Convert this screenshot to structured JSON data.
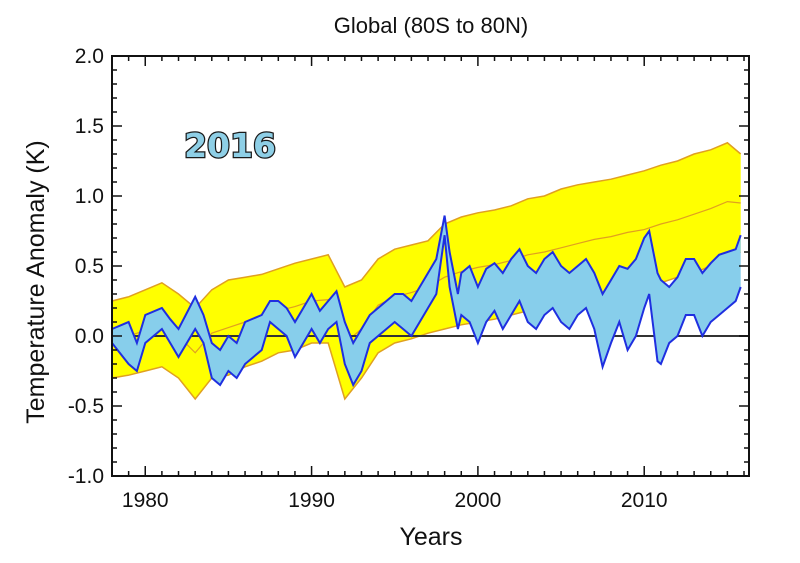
{
  "chart_data": {
    "type": "area",
    "title": "Global (80S to 80N)",
    "xlabel": "Years",
    "ylabel": "Temperature Anomaly (K)",
    "stamp": "2016",
    "xlim": [
      1978,
      2016.3
    ],
    "ylim": [
      -1.0,
      2.0
    ],
    "x_ticks": [
      1980,
      1990,
      2000,
      2010
    ],
    "x_tick_labels": [
      "1980",
      "1990",
      "2000",
      "2010"
    ],
    "y_ticks": [
      -1.0,
      -0.5,
      0.0,
      0.5,
      1.0,
      1.5,
      2.0
    ],
    "y_tick_labels": [
      "-1.0",
      "-0.5",
      "0.0",
      "0.5",
      "1.0",
      "1.5",
      "2.0"
    ],
    "zero_line": 0.0,
    "colors": {
      "model_range_fill": "#ffff00",
      "model_range_edge": "#e0a020",
      "model_mean": "#e0a020",
      "obs_fill": "#87ceeb",
      "obs_line": "#1f2fe0",
      "stamp_fill": "#8ecfe6",
      "stamp_stroke": "#1a1a1a"
    },
    "series": [
      {
        "kind": "model-range-upper",
        "x": [
          1978.0,
          1979.0,
          1980.0,
          1981.0,
          1982.0,
          1983.0,
          1984.0,
          1985.0,
          1986.0,
          1987.0,
          1988.0,
          1989.0,
          1990.0,
          1991.0,
          1992.0,
          1993.0,
          1994.0,
          1995.0,
          1996.0,
          1997.0,
          1998.0,
          1999.0,
          2000.0,
          2001.0,
          2002.0,
          2003.0,
          2004.0,
          2005.0,
          2006.0,
          2007.0,
          2008.0,
          2009.0,
          2010.0,
          2011.0,
          2012.0,
          2013.0,
          2014.0,
          2015.0,
          2015.8
        ],
        "values": [
          0.25,
          0.28,
          0.33,
          0.38,
          0.3,
          0.2,
          0.33,
          0.4,
          0.42,
          0.44,
          0.48,
          0.52,
          0.55,
          0.58,
          0.35,
          0.4,
          0.55,
          0.62,
          0.65,
          0.68,
          0.8,
          0.85,
          0.88,
          0.9,
          0.93,
          0.98,
          1.0,
          1.05,
          1.08,
          1.1,
          1.12,
          1.15,
          1.18,
          1.22,
          1.25,
          1.3,
          1.33,
          1.38,
          1.3
        ]
      },
      {
        "kind": "model-range-lower",
        "x": [
          1978.0,
          1979.0,
          1980.0,
          1981.0,
          1982.0,
          1983.0,
          1984.0,
          1985.0,
          1986.0,
          1987.0,
          1988.0,
          1989.0,
          1990.0,
          1991.0,
          1992.0,
          1993.0,
          1994.0,
          1995.0,
          1996.0,
          1997.0,
          1998.0,
          1999.0,
          2000.0,
          2001.0,
          2002.0,
          2003.0,
          2004.0,
          2005.0,
          2006.0,
          2007.0,
          2008.0,
          2009.0,
          2010.0,
          2011.0,
          2012.0,
          2013.0,
          2014.0,
          2015.0,
          2015.8
        ],
        "values": [
          -0.3,
          -0.28,
          -0.25,
          -0.22,
          -0.3,
          -0.45,
          -0.3,
          -0.28,
          -0.22,
          -0.18,
          -0.12,
          -0.1,
          -0.05,
          -0.05,
          -0.45,
          -0.3,
          -0.12,
          -0.05,
          -0.02,
          0.02,
          0.05,
          0.08,
          0.1,
          0.12,
          0.15,
          0.18,
          0.2,
          0.22,
          0.25,
          0.28,
          0.3,
          0.33,
          0.35,
          0.38,
          0.42,
          0.45,
          0.5,
          0.55,
          0.6
        ]
      },
      {
        "kind": "model-mean",
        "x": [
          1978.0,
          1979.0,
          1980.0,
          1981.0,
          1982.0,
          1983.0,
          1984.0,
          1985.0,
          1986.0,
          1987.0,
          1988.0,
          1989.0,
          1990.0,
          1991.0,
          1992.0,
          1993.0,
          1994.0,
          1995.0,
          1996.0,
          1997.0,
          1998.0,
          1999.0,
          2000.0,
          2001.0,
          2002.0,
          2003.0,
          2004.0,
          2005.0,
          2006.0,
          2007.0,
          2008.0,
          2009.0,
          2010.0,
          2011.0,
          2012.0,
          2013.0,
          2014.0,
          2015.0,
          2015.8
        ],
        "values": [
          -0.02,
          0.0,
          0.04,
          0.08,
          0.0,
          -0.12,
          0.02,
          0.06,
          0.1,
          0.13,
          0.18,
          0.21,
          0.25,
          0.26,
          -0.05,
          0.05,
          0.22,
          0.28,
          0.31,
          0.35,
          0.42,
          0.46,
          0.49,
          0.51,
          0.54,
          0.58,
          0.6,
          0.63,
          0.66,
          0.69,
          0.71,
          0.74,
          0.76,
          0.8,
          0.83,
          0.87,
          0.91,
          0.96,
          0.95
        ]
      },
      {
        "kind": "observations-upper",
        "x": [
          1978.0,
          1979.0,
          1979.5,
          1980.0,
          1981.0,
          1981.5,
          1982.0,
          1983.0,
          1983.5,
          1984.0,
          1984.5,
          1985.0,
          1985.5,
          1986.0,
          1987.0,
          1987.5,
          1988.0,
          1988.5,
          1989.0,
          1989.5,
          1990.0,
          1990.5,
          1991.0,
          1991.5,
          1992.0,
          1992.5,
          1993.0,
          1993.5,
          1994.0,
          1994.5,
          1995.0,
          1995.5,
          1996.0,
          1996.5,
          1997.0,
          1997.5,
          1998.0,
          1998.3,
          1998.8,
          1999.0,
          1999.5,
          2000.0,
          2000.5,
          2001.0,
          2001.5,
          2002.0,
          2002.5,
          2003.0,
          2003.5,
          2004.0,
          2004.5,
          2005.0,
          2005.5,
          2006.0,
          2006.5,
          2007.0,
          2007.5,
          2008.0,
          2008.5,
          2009.0,
          2009.5,
          2010.0,
          2010.3,
          2010.8,
          2011.0,
          2011.5,
          2012.0,
          2012.5,
          2013.0,
          2013.5,
          2014.0,
          2014.5,
          2015.0,
          2015.5,
          2015.8
        ],
        "values": [
          0.05,
          0.1,
          -0.05,
          0.15,
          0.2,
          0.12,
          0.05,
          0.28,
          0.15,
          -0.05,
          -0.1,
          0.0,
          -0.05,
          0.1,
          0.15,
          0.25,
          0.25,
          0.2,
          0.1,
          0.2,
          0.3,
          0.18,
          0.25,
          0.32,
          0.1,
          -0.05,
          0.05,
          0.15,
          0.2,
          0.25,
          0.3,
          0.3,
          0.25,
          0.35,
          0.45,
          0.55,
          0.86,
          0.6,
          0.3,
          0.45,
          0.5,
          0.35,
          0.48,
          0.52,
          0.45,
          0.55,
          0.62,
          0.5,
          0.45,
          0.55,
          0.6,
          0.5,
          0.45,
          0.5,
          0.55,
          0.45,
          0.3,
          0.4,
          0.5,
          0.48,
          0.55,
          0.7,
          0.75,
          0.45,
          0.4,
          0.35,
          0.42,
          0.55,
          0.55,
          0.45,
          0.52,
          0.58,
          0.6,
          0.62,
          0.72
        ]
      },
      {
        "kind": "observations-lower",
        "x": [
          1978.0,
          1979.0,
          1979.5,
          1980.0,
          1981.0,
          1981.5,
          1982.0,
          1983.0,
          1983.5,
          1984.0,
          1984.5,
          1985.0,
          1985.5,
          1986.0,
          1987.0,
          1987.5,
          1988.0,
          1988.5,
          1989.0,
          1989.5,
          1990.0,
          1990.5,
          1991.0,
          1991.5,
          1992.0,
          1992.5,
          1993.0,
          1993.5,
          1994.0,
          1994.5,
          1995.0,
          1995.5,
          1996.0,
          1996.5,
          1997.0,
          1997.5,
          1998.0,
          1998.3,
          1998.8,
          1999.0,
          1999.5,
          2000.0,
          2000.5,
          2001.0,
          2001.5,
          2002.0,
          2002.5,
          2003.0,
          2003.5,
          2004.0,
          2004.5,
          2005.0,
          2005.5,
          2006.0,
          2006.5,
          2007.0,
          2007.5,
          2008.0,
          2008.5,
          2009.0,
          2009.5,
          2010.0,
          2010.3,
          2010.8,
          2011.0,
          2011.5,
          2012.0,
          2012.5,
          2013.0,
          2013.5,
          2014.0,
          2014.5,
          2015.0,
          2015.5,
          2015.8
        ],
        "values": [
          -0.05,
          -0.2,
          -0.25,
          -0.05,
          0.05,
          -0.05,
          -0.15,
          0.05,
          -0.05,
          -0.3,
          -0.35,
          -0.25,
          -0.3,
          -0.2,
          -0.1,
          0.1,
          0.05,
          0.0,
          -0.15,
          -0.05,
          0.05,
          -0.05,
          0.05,
          0.1,
          -0.2,
          -0.35,
          -0.25,
          -0.05,
          0.0,
          0.05,
          0.1,
          0.05,
          0.0,
          0.1,
          0.2,
          0.3,
          0.72,
          0.35,
          0.05,
          0.15,
          0.1,
          -0.05,
          0.1,
          0.18,
          0.05,
          0.15,
          0.25,
          0.1,
          0.05,
          0.15,
          0.2,
          0.1,
          0.05,
          0.15,
          0.2,
          0.05,
          -0.22,
          -0.05,
          0.1,
          -0.1,
          0.0,
          0.2,
          0.3,
          -0.18,
          -0.2,
          -0.05,
          0.0,
          0.15,
          0.15,
          0.0,
          0.1,
          0.15,
          0.2,
          0.25,
          0.35
        ]
      }
    ]
  }
}
